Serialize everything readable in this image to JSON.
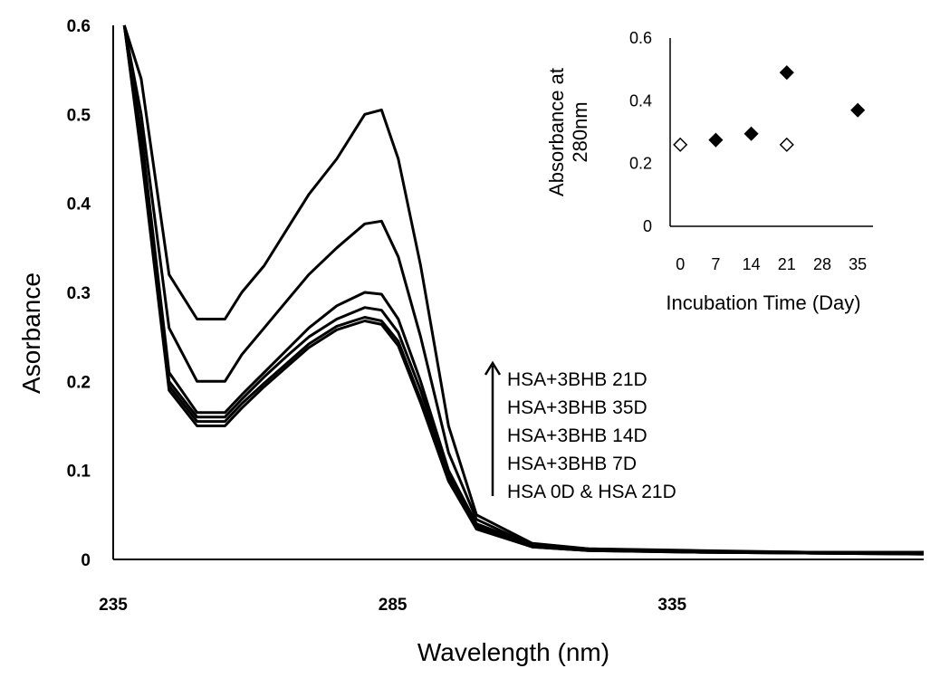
{
  "chart_data": [
    {
      "type": "line",
      "title": "",
      "xlabel": "Wavelength (nm)",
      "ylabel": "Asorbance",
      "xlim": [
        235,
        380
      ],
      "ylim": [
        0,
        0.6
      ],
      "x_ticks": [
        "235",
        "285",
        "335"
      ],
      "y_ticks": [
        "0",
        "0.1",
        "0.2",
        "0.3",
        "0.4",
        "0.5",
        "0.6"
      ],
      "grid": false,
      "annotation": {
        "arrow": "up",
        "labels": [
          "HSA+3BHB 21D",
          "HSA+3BHB 35D",
          "HSA+3BHB 14D",
          "HSA+3BHB 7D",
          "HSA 0D & HSA 21D"
        ]
      },
      "series": [
        {
          "name": "HSA+3BHB 21D",
          "x": [
            237,
            240,
            245,
            250,
            255,
            258,
            262,
            266,
            270,
            275,
            280,
            283,
            286,
            290,
            295,
            300,
            310,
            320,
            340,
            360,
            380
          ],
          "y": [
            0.6,
            0.54,
            0.32,
            0.27,
            0.27,
            0.3,
            0.33,
            0.37,
            0.41,
            0.45,
            0.5,
            0.505,
            0.45,
            0.33,
            0.15,
            0.05,
            0.018,
            0.012,
            0.01,
            0.008,
            0.008
          ]
        },
        {
          "name": "HSA+3BHB 35D",
          "x": [
            237,
            240,
            245,
            250,
            255,
            258,
            262,
            266,
            270,
            275,
            280,
            283,
            286,
            290,
            295,
            300,
            310,
            320,
            340,
            360,
            380
          ],
          "y": [
            0.6,
            0.5,
            0.26,
            0.2,
            0.2,
            0.23,
            0.26,
            0.29,
            0.32,
            0.35,
            0.377,
            0.38,
            0.34,
            0.25,
            0.12,
            0.045,
            0.016,
            0.012,
            0.009,
            0.008,
            0.008
          ]
        },
        {
          "name": "HSA+3BHB 14D",
          "x": [
            237,
            240,
            245,
            250,
            255,
            258,
            262,
            266,
            270,
            275,
            280,
            283,
            286,
            290,
            295,
            300,
            310,
            320,
            340,
            360,
            380
          ],
          "y": [
            0.6,
            0.48,
            0.21,
            0.165,
            0.165,
            0.185,
            0.21,
            0.235,
            0.26,
            0.285,
            0.3,
            0.298,
            0.27,
            0.2,
            0.1,
            0.04,
            0.016,
            0.011,
            0.009,
            0.008,
            0.007
          ]
        },
        {
          "name": "HSA+3BHB 7D",
          "x": [
            237,
            240,
            245,
            250,
            255,
            258,
            262,
            266,
            270,
            275,
            280,
            283,
            286,
            290,
            295,
            300,
            310,
            320,
            340,
            360,
            380
          ],
          "y": [
            0.6,
            0.47,
            0.2,
            0.16,
            0.16,
            0.18,
            0.205,
            0.228,
            0.25,
            0.27,
            0.283,
            0.28,
            0.255,
            0.19,
            0.095,
            0.038,
            0.015,
            0.011,
            0.008,
            0.007,
            0.007
          ]
        },
        {
          "name": "HSA 0D",
          "x": [
            237,
            240,
            245,
            250,
            255,
            258,
            262,
            266,
            270,
            275,
            280,
            283,
            286,
            290,
            295,
            300,
            310,
            320,
            340,
            360,
            380
          ],
          "y": [
            0.6,
            0.46,
            0.195,
            0.155,
            0.155,
            0.175,
            0.198,
            0.22,
            0.242,
            0.262,
            0.272,
            0.268,
            0.245,
            0.18,
            0.09,
            0.035,
            0.014,
            0.01,
            0.008,
            0.007,
            0.006
          ]
        },
        {
          "name": "HSA 21D",
          "x": [
            237,
            240,
            245,
            250,
            255,
            258,
            262,
            266,
            270,
            275,
            280,
            283,
            286,
            290,
            295,
            300,
            310,
            320,
            340,
            360,
            380
          ],
          "y": [
            0.6,
            0.455,
            0.19,
            0.15,
            0.15,
            0.17,
            0.194,
            0.216,
            0.238,
            0.258,
            0.268,
            0.264,
            0.24,
            0.176,
            0.088,
            0.034,
            0.014,
            0.01,
            0.008,
            0.007,
            0.006
          ]
        }
      ]
    },
    {
      "type": "scatter",
      "title": "",
      "xlabel": "Incubation Time  (Day)",
      "ylabel": "Absorbance at 280nm",
      "ylabel_lines": [
        "Absorbance at",
        "280nm"
      ],
      "xlim": [
        -2,
        38
      ],
      "ylim": [
        0,
        0.6
      ],
      "x_ticks": [
        "0",
        "7",
        "14",
        "21",
        "28",
        "35"
      ],
      "y_ticks": [
        "0",
        "0.2",
        "0.4",
        "0.6"
      ],
      "series": [
        {
          "name": "HSA+3BHB",
          "marker": "filled-diamond",
          "x": [
            7,
            14,
            21,
            35
          ],
          "y": [
            0.275,
            0.295,
            0.49,
            0.37
          ]
        },
        {
          "name": "HSA",
          "marker": "open-diamond",
          "x": [
            0,
            21
          ],
          "y": [
            0.26,
            0.26
          ]
        }
      ]
    }
  ]
}
